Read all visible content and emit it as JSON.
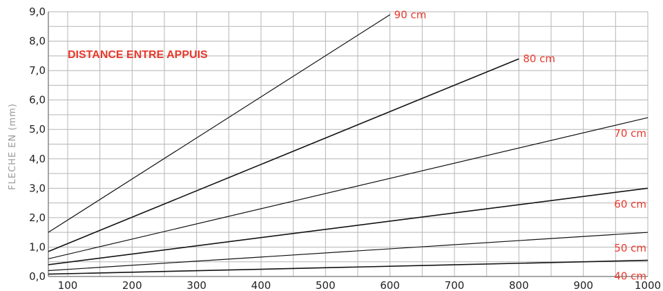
{
  "chart_data": {
    "type": "line",
    "xlabel": "",
    "ylabel": "FLECHE EN (mm)",
    "annotation": "DISTANCE ENTRE APPUIS",
    "xlim": [
      70,
      1000
    ],
    "ylim": [
      0,
      9
    ],
    "grid": true,
    "x_ticks": [
      "100",
      "200",
      "300",
      "400",
      "500",
      "600",
      "700",
      "800",
      "900",
      "1000"
    ],
    "y_ticks": [
      "0,0",
      "1,0",
      "2,0",
      "3,0",
      "4,0",
      "5,0",
      "6,0",
      "7,0",
      "8,0",
      "9,0"
    ],
    "series": [
      {
        "name": "90 cm",
        "x": [
          70,
          600
        ],
        "y": [
          1.5,
          8.9
        ]
      },
      {
        "name": "80 cm",
        "x": [
          70,
          800
        ],
        "y": [
          0.85,
          7.4
        ]
      },
      {
        "name": "70 cm",
        "x": [
          70,
          1000
        ],
        "y": [
          0.6,
          5.4
        ]
      },
      {
        "name": "60 cm",
        "x": [
          70,
          1000
        ],
        "y": [
          0.4,
          3.0
        ]
      },
      {
        "name": "50 cm",
        "x": [
          70,
          1000
        ],
        "y": [
          0.2,
          1.5
        ]
      },
      {
        "name": "40 cm",
        "x": [
          70,
          1000
        ],
        "y": [
          0.08,
          0.55
        ]
      }
    ],
    "colors": {
      "label": "#e8392b",
      "line": "#111111",
      "grid": "#b5b5b5",
      "axis": "#888888"
    }
  }
}
